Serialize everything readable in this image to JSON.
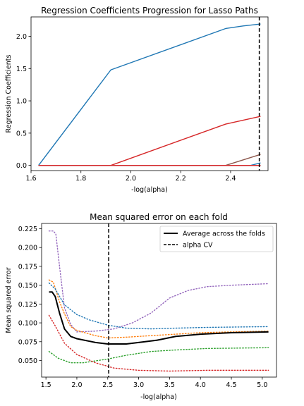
{
  "chart_data": [
    {
      "type": "line",
      "title": "Regression Coefficients Progression for Lasso Paths",
      "xlabel": "-log(alpha)",
      "ylabel": "Regression Coefficients",
      "xlim": [
        1.6,
        2.55
      ],
      "ylim": [
        -0.08,
        2.3
      ],
      "xticks": [
        1.6,
        1.8,
        2.0,
        2.2,
        2.4
      ],
      "xtick_labels": [
        "1.6",
        "1.8",
        "2.0",
        "2.2",
        "2.4"
      ],
      "yticks": [
        0.0,
        0.5,
        1.0,
        1.5,
        2.0
      ],
      "ytick_labels": [
        "0.0",
        "0.5",
        "1.0",
        "1.5",
        "2.0"
      ],
      "grid": false,
      "vline": {
        "x": 2.515,
        "style": "dashed",
        "color": "#000000"
      },
      "series": [
        {
          "color": "#1f77b4",
          "points": [
            [
              1.63,
              0.0
            ],
            [
              1.92,
              1.48
            ],
            [
              2.38,
              2.12
            ],
            [
              2.45,
              2.16
            ],
            [
              2.52,
              2.19
            ]
          ]
        },
        {
          "color": "#d62728",
          "points": [
            [
              1.63,
              0.0
            ],
            [
              1.92,
              0.0
            ],
            [
              2.38,
              0.64
            ],
            [
              2.45,
              0.7
            ],
            [
              2.52,
              0.76
            ]
          ]
        },
        {
          "color": "#8c564b",
          "points": [
            [
              1.63,
              0.0
            ],
            [
              2.38,
              0.0
            ],
            [
              2.52,
              0.17
            ]
          ]
        },
        {
          "color": "#1f77b4",
          "points": [
            [
              1.63,
              0.0
            ],
            [
              2.48,
              0.0
            ],
            [
              2.52,
              0.04
            ]
          ]
        },
        {
          "color": "#ff7f0e",
          "points": [
            [
              1.63,
              0.0
            ],
            [
              2.52,
              0.0
            ]
          ]
        },
        {
          "color": "#2ca02c",
          "points": [
            [
              1.63,
              0.0
            ],
            [
              2.52,
              0.0
            ]
          ]
        },
        {
          "color": "#9467bd",
          "points": [
            [
              1.63,
              0.0
            ],
            [
              2.52,
              0.0
            ]
          ]
        },
        {
          "color": "#d62728",
          "points": [
            [
              1.63,
              0.0
            ],
            [
              2.52,
              0.0
            ]
          ]
        }
      ]
    },
    {
      "type": "line",
      "title": "Mean squared error on each fold",
      "xlabel": "-log(alpha)",
      "ylabel": "Mean squared error",
      "xlim": [
        1.43,
        5.23
      ],
      "ylim": [
        0.028,
        0.232
      ],
      "xticks": [
        1.5,
        2.0,
        2.5,
        3.0,
        3.5,
        4.0,
        4.5,
        5.0
      ],
      "xtick_labels": [
        "1.5",
        "2.0",
        "2.5",
        "3.0",
        "3.5",
        "4.0",
        "4.5",
        "5.0"
      ],
      "yticks": [
        0.05,
        0.075,
        0.1,
        0.125,
        0.15,
        0.175,
        0.2,
        0.225
      ],
      "ytick_labels": [
        "0.050",
        "0.075",
        "0.100",
        "0.125",
        "0.150",
        "0.175",
        "0.200",
        "0.225"
      ],
      "grid": false,
      "legend_position": "top-right",
      "vline": {
        "x": 2.515,
        "style": "dashed",
        "color": "#000000"
      },
      "legend": [
        {
          "label": "Average across the folds",
          "style": "solid",
          "color": "#000000"
        },
        {
          "label": "alpha CV",
          "style": "dashed",
          "color": "#000000"
        }
      ],
      "series": [
        {
          "style": "dotted",
          "color": "#9467bd",
          "points": [
            [
              1.55,
              0.222
            ],
            [
              1.62,
              0.222
            ],
            [
              1.66,
              0.218
            ],
            [
              1.72,
              0.175
            ],
            [
              1.8,
              0.12
            ],
            [
              1.9,
              0.098
            ],
            [
              2.0,
              0.088
            ],
            [
              2.3,
              0.089
            ],
            [
              2.6,
              0.092
            ],
            [
              2.9,
              0.1
            ],
            [
              3.2,
              0.113
            ],
            [
              3.5,
              0.133
            ],
            [
              3.8,
              0.143
            ],
            [
              4.1,
              0.148
            ],
            [
              4.5,
              0.15
            ],
            [
              5.1,
              0.152
            ]
          ]
        },
        {
          "style": "dotted",
          "color": "#ff7f0e",
          "points": [
            [
              1.55,
              0.157
            ],
            [
              1.62,
              0.154
            ],
            [
              1.72,
              0.128
            ],
            [
              1.8,
              0.112
            ],
            [
              1.9,
              0.095
            ],
            [
              2.0,
              0.09
            ],
            [
              2.3,
              0.083
            ],
            [
              2.5,
              0.08
            ],
            [
              2.8,
              0.081
            ],
            [
              3.2,
              0.083
            ],
            [
              3.6,
              0.085
            ],
            [
              4.0,
              0.087
            ],
            [
              4.5,
              0.088
            ],
            [
              5.1,
              0.089
            ]
          ]
        },
        {
          "style": "dotted",
          "color": "#1f77b4",
          "points": [
            [
              1.55,
              0.153
            ],
            [
              1.65,
              0.145
            ],
            [
              1.8,
              0.124
            ],
            [
              2.0,
              0.111
            ],
            [
              2.2,
              0.104
            ],
            [
              2.5,
              0.097
            ],
            [
              2.8,
              0.093
            ],
            [
              3.2,
              0.092
            ],
            [
              3.6,
              0.093
            ],
            [
              4.1,
              0.094
            ],
            [
              5.1,
              0.095
            ]
          ]
        },
        {
          "style": "dotted",
          "color": "#2ca02c",
          "points": [
            [
              1.55,
              0.062
            ],
            [
              1.7,
              0.053
            ],
            [
              1.9,
              0.047
            ],
            [
              2.1,
              0.047
            ],
            [
              2.5,
              0.052
            ],
            [
              2.8,
              0.057
            ],
            [
              3.2,
              0.062
            ],
            [
              3.6,
              0.064
            ],
            [
              4.1,
              0.066
            ],
            [
              5.1,
              0.067
            ]
          ]
        },
        {
          "style": "dotted",
          "color": "#d62728",
          "points": [
            [
              1.55,
              0.11
            ],
            [
              1.65,
              0.096
            ],
            [
              1.8,
              0.073
            ],
            [
              2.0,
              0.058
            ],
            [
              2.3,
              0.047
            ],
            [
              2.6,
              0.04
            ],
            [
              3.0,
              0.037
            ],
            [
              3.5,
              0.036
            ],
            [
              4.1,
              0.037
            ],
            [
              5.1,
              0.037
            ]
          ]
        },
        {
          "style": "solid",
          "color": "#000000",
          "width": 2,
          "points": [
            [
              1.55,
              0.141
            ],
            [
              1.6,
              0.141
            ],
            [
              1.65,
              0.135
            ],
            [
              1.72,
              0.113
            ],
            [
              1.8,
              0.092
            ],
            [
              1.9,
              0.082
            ],
            [
              2.0,
              0.079
            ],
            [
              2.3,
              0.074
            ],
            [
              2.5,
              0.072
            ],
            [
              2.8,
              0.072
            ],
            [
              3.0,
              0.074
            ],
            [
              3.3,
              0.077
            ],
            [
              3.6,
              0.082
            ],
            [
              4.0,
              0.085
            ],
            [
              4.5,
              0.087
            ],
            [
              5.1,
              0.088
            ]
          ]
        }
      ]
    }
  ]
}
